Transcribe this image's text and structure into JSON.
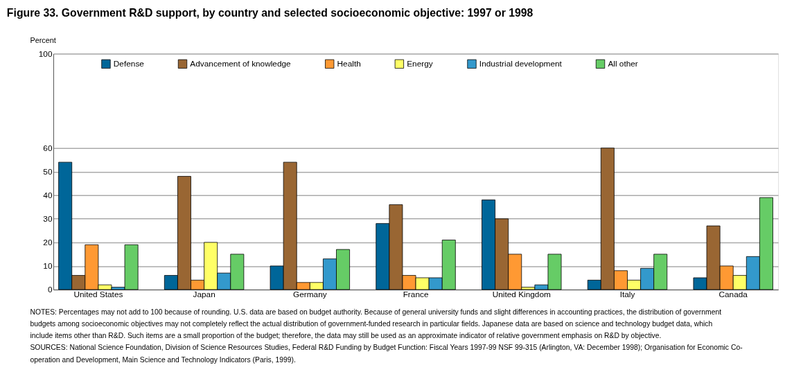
{
  "chart_data": {
    "type": "bar",
    "title": "Figure 33.  Government R&D support, by country and selected socioeconomic objective: 1997 or 1998",
    "ylabel": "Percent",
    "categories": [
      "United States",
      "Japan",
      "Germany",
      "France",
      "United Kingdom",
      "Italy",
      "Canada"
    ],
    "series": [
      {
        "name": "Defense",
        "color": "#006699",
        "values": [
          54,
          6,
          10,
          28,
          38,
          4,
          5
        ]
      },
      {
        "name": "Advancement of knowledge",
        "color": "#996633",
        "values": [
          6,
          48,
          54,
          36,
          30,
          60,
          27
        ]
      },
      {
        "name": "Health",
        "color": "#ff9933",
        "values": [
          19,
          4,
          3,
          6,
          15,
          8,
          10
        ]
      },
      {
        "name": "Energy",
        "color": "#ffff66",
        "values": [
          2,
          20,
          3,
          5,
          1,
          4,
          6
        ]
      },
      {
        "name": "Industrial development",
        "color": "#3399cc",
        "values": [
          1,
          7,
          13,
          5,
          2,
          9,
          14
        ]
      },
      {
        "name": "All other",
        "color": "#66cc66",
        "values": [
          19,
          15,
          17,
          21,
          15,
          15,
          39
        ]
      }
    ],
    "ylim": [
      0,
      100
    ],
    "yticks": [
      0,
      10,
      20,
      30,
      40,
      50,
      60,
      100
    ],
    "grid": "y",
    "legend": "top",
    "annotations": [
      "NOTES: Percentages may not add to 100 because of rounding. U.S. data are based on budget authority. Because of general university funds and slight differences in accounting practices, the distribution of government budgets among socioeconomic objectives may not completely reflect the actual distribution of government-funded research in particular fields. Japanese data are based on science and technology budget data, which include items other than R&D. Such items are a small proportion of the budget; therefore, the data may still be used as an approximate indicator of relative government emphasis on R&D by objective.",
      "SOURCES: National Science Foundation, Division of Science Resources Studies, Federal R&D Funding by Budget Function: Fiscal Years 1997-99 NSF 99-315 (Arlington, VA: December 1998); Organisation for Economic Co-operation and Development, Main Science and Technology Indicators (Paris, 1999)."
    ]
  }
}
